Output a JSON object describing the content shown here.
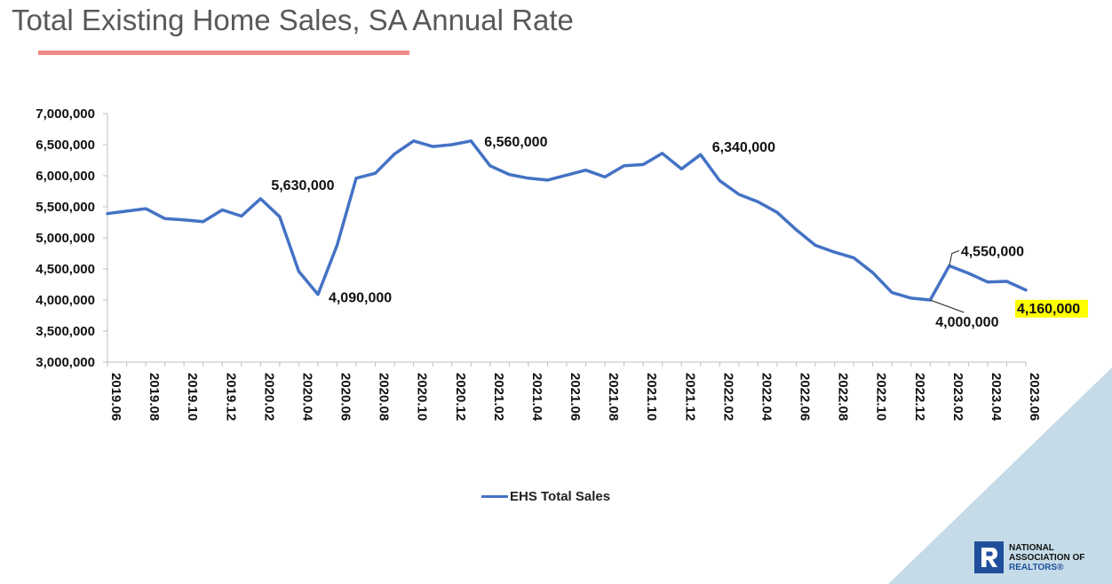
{
  "slide": {
    "title": "Total Existing Home Sales, SA Annual Rate"
  },
  "logo": {
    "line1": "NATIONAL",
    "line2": "ASSOCIATION OF",
    "line3": "REALTORS®"
  },
  "colors": {
    "series": "#4472c4",
    "underline": "#f08a84",
    "corner": "#c5dbe8",
    "highlight": "#ffff00",
    "logo": "#1f4f9c"
  },
  "chart_data": {
    "type": "line",
    "title": "",
    "xlabel": "",
    "ylabel": "",
    "ylim": [
      3000000,
      7000000
    ],
    "yticks": [
      "7,000,000",
      "6,500,000",
      "6,000,000",
      "5,500,000",
      "5,000,000",
      "4,500,000",
      "4,000,000",
      "3,500,000",
      "3,000,000"
    ],
    "ytick_values": [
      7000000,
      6500000,
      6000000,
      5500000,
      5000000,
      4500000,
      4000000,
      3500000,
      3000000
    ],
    "xtick_labels": [
      "2019.06",
      "2019.08",
      "2019.10",
      "2019.12",
      "2020.02",
      "2020.04",
      "2020.06",
      "2020.08",
      "2020.10",
      "2020.12",
      "2021.02",
      "2021.04",
      "2021.06",
      "2021.08",
      "2021.10",
      "2021.12",
      "2022.02",
      "2022.04",
      "2022.06",
      "2022.08",
      "2022.10",
      "2022.12",
      "2023.02",
      "2023.04",
      "2023.06"
    ],
    "x": [
      "2019.06",
      "2019.07",
      "2019.08",
      "2019.09",
      "2019.10",
      "2019.11",
      "2019.12",
      "2020.01",
      "2020.02",
      "2020.03",
      "2020.04",
      "2020.05",
      "2020.06",
      "2020.07",
      "2020.08",
      "2020.09",
      "2020.10",
      "2020.11",
      "2020.12",
      "2021.01",
      "2021.02",
      "2021.03",
      "2021.04",
      "2021.05",
      "2021.06",
      "2021.07",
      "2021.08",
      "2021.09",
      "2021.10",
      "2021.11",
      "2021.12",
      "2022.01",
      "2022.02",
      "2022.03",
      "2022.04",
      "2022.05",
      "2022.06",
      "2022.07",
      "2022.08",
      "2022.09",
      "2022.10",
      "2022.11",
      "2022.12",
      "2023.01",
      "2023.02",
      "2023.03",
      "2023.04",
      "2023.05",
      "2023.06"
    ],
    "series": [
      {
        "name": "EHS Total Sales",
        "color": "#4472c4",
        "values": [
          5390000,
          5430000,
          5470000,
          5310000,
          5290000,
          5260000,
          5450000,
          5350000,
          5630000,
          5340000,
          4460000,
          4090000,
          4880000,
          5960000,
          6040000,
          6350000,
          6560000,
          6470000,
          6500000,
          6560000,
          6160000,
          6020000,
          5960000,
          5930000,
          6010000,
          6090000,
          5980000,
          6160000,
          6180000,
          6360000,
          6110000,
          6340000,
          5920000,
          5700000,
          5580000,
          5410000,
          5130000,
          4880000,
          4770000,
          4680000,
          4440000,
          4120000,
          4030000,
          4000000,
          4550000,
          4430000,
          4290000,
          4300000,
          4160000
        ]
      }
    ],
    "annotations": [
      {
        "index": 8,
        "label": "5,630,000"
      },
      {
        "index": 11,
        "label": "4,090,000"
      },
      {
        "index": 19,
        "label": "6,560,000"
      },
      {
        "index": 31,
        "label": "6,340,000"
      },
      {
        "index": 43,
        "label": "4,000,000"
      },
      {
        "index": 44,
        "label": "4,550,000"
      },
      {
        "index": 48,
        "label": "4,160,000",
        "highlight": true
      }
    ],
    "legend": "bottom-center",
    "grid": false
  }
}
